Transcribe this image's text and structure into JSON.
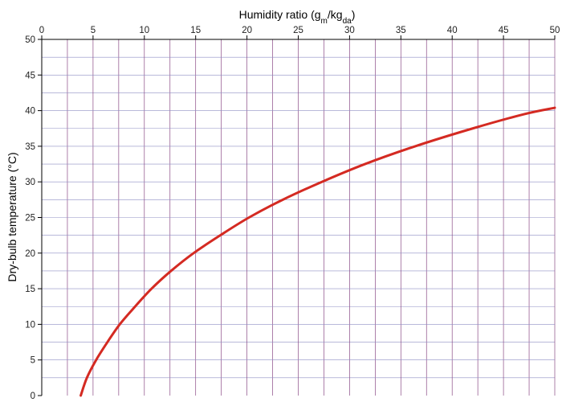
{
  "chart_data": {
    "type": "line",
    "xlabel_main": "Humidity ratio (g",
    "xlabel_sub1": "m",
    "xlabel_mid": "/kg",
    "xlabel_sub2": "da",
    "xlabel_end": ")",
    "ylabel": "Dry-bulb temperature (°C)",
    "x_axis_position": "top",
    "xlim": [
      0,
      50
    ],
    "ylim": [
      0,
      50
    ],
    "x_ticks": [
      0,
      5,
      10,
      15,
      20,
      25,
      30,
      35,
      40,
      45,
      50
    ],
    "y_ticks": [
      0,
      5,
      10,
      15,
      20,
      25,
      30,
      35,
      40,
      45,
      50
    ],
    "x_tick_labels": [
      "0",
      "5",
      "10",
      "15",
      "20",
      "25",
      "30",
      "35",
      "40",
      "45",
      "50"
    ],
    "y_tick_labels": [
      "0",
      "5",
      "10",
      "15",
      "20",
      "25",
      "30",
      "35",
      "40",
      "45",
      "50"
    ],
    "grid": true,
    "series": [
      {
        "color": "#d42a22",
        "points": [
          [
            3.8,
            0
          ],
          [
            4.4,
            2.5
          ],
          [
            5.3,
            5
          ],
          [
            6.4,
            7.5
          ],
          [
            7.6,
            10
          ],
          [
            9.1,
            12.5
          ],
          [
            10.7,
            15
          ],
          [
            12.6,
            17.5
          ],
          [
            14.8,
            20
          ],
          [
            17.4,
            22.5
          ],
          [
            20.2,
            25
          ],
          [
            23.5,
            27.5
          ],
          [
            27.3,
            30
          ],
          [
            31.5,
            32.5
          ],
          [
            36.4,
            35
          ],
          [
            42.0,
            37.5
          ],
          [
            47.0,
            39.5
          ],
          [
            50.0,
            40.4
          ]
        ]
      }
    ]
  }
}
